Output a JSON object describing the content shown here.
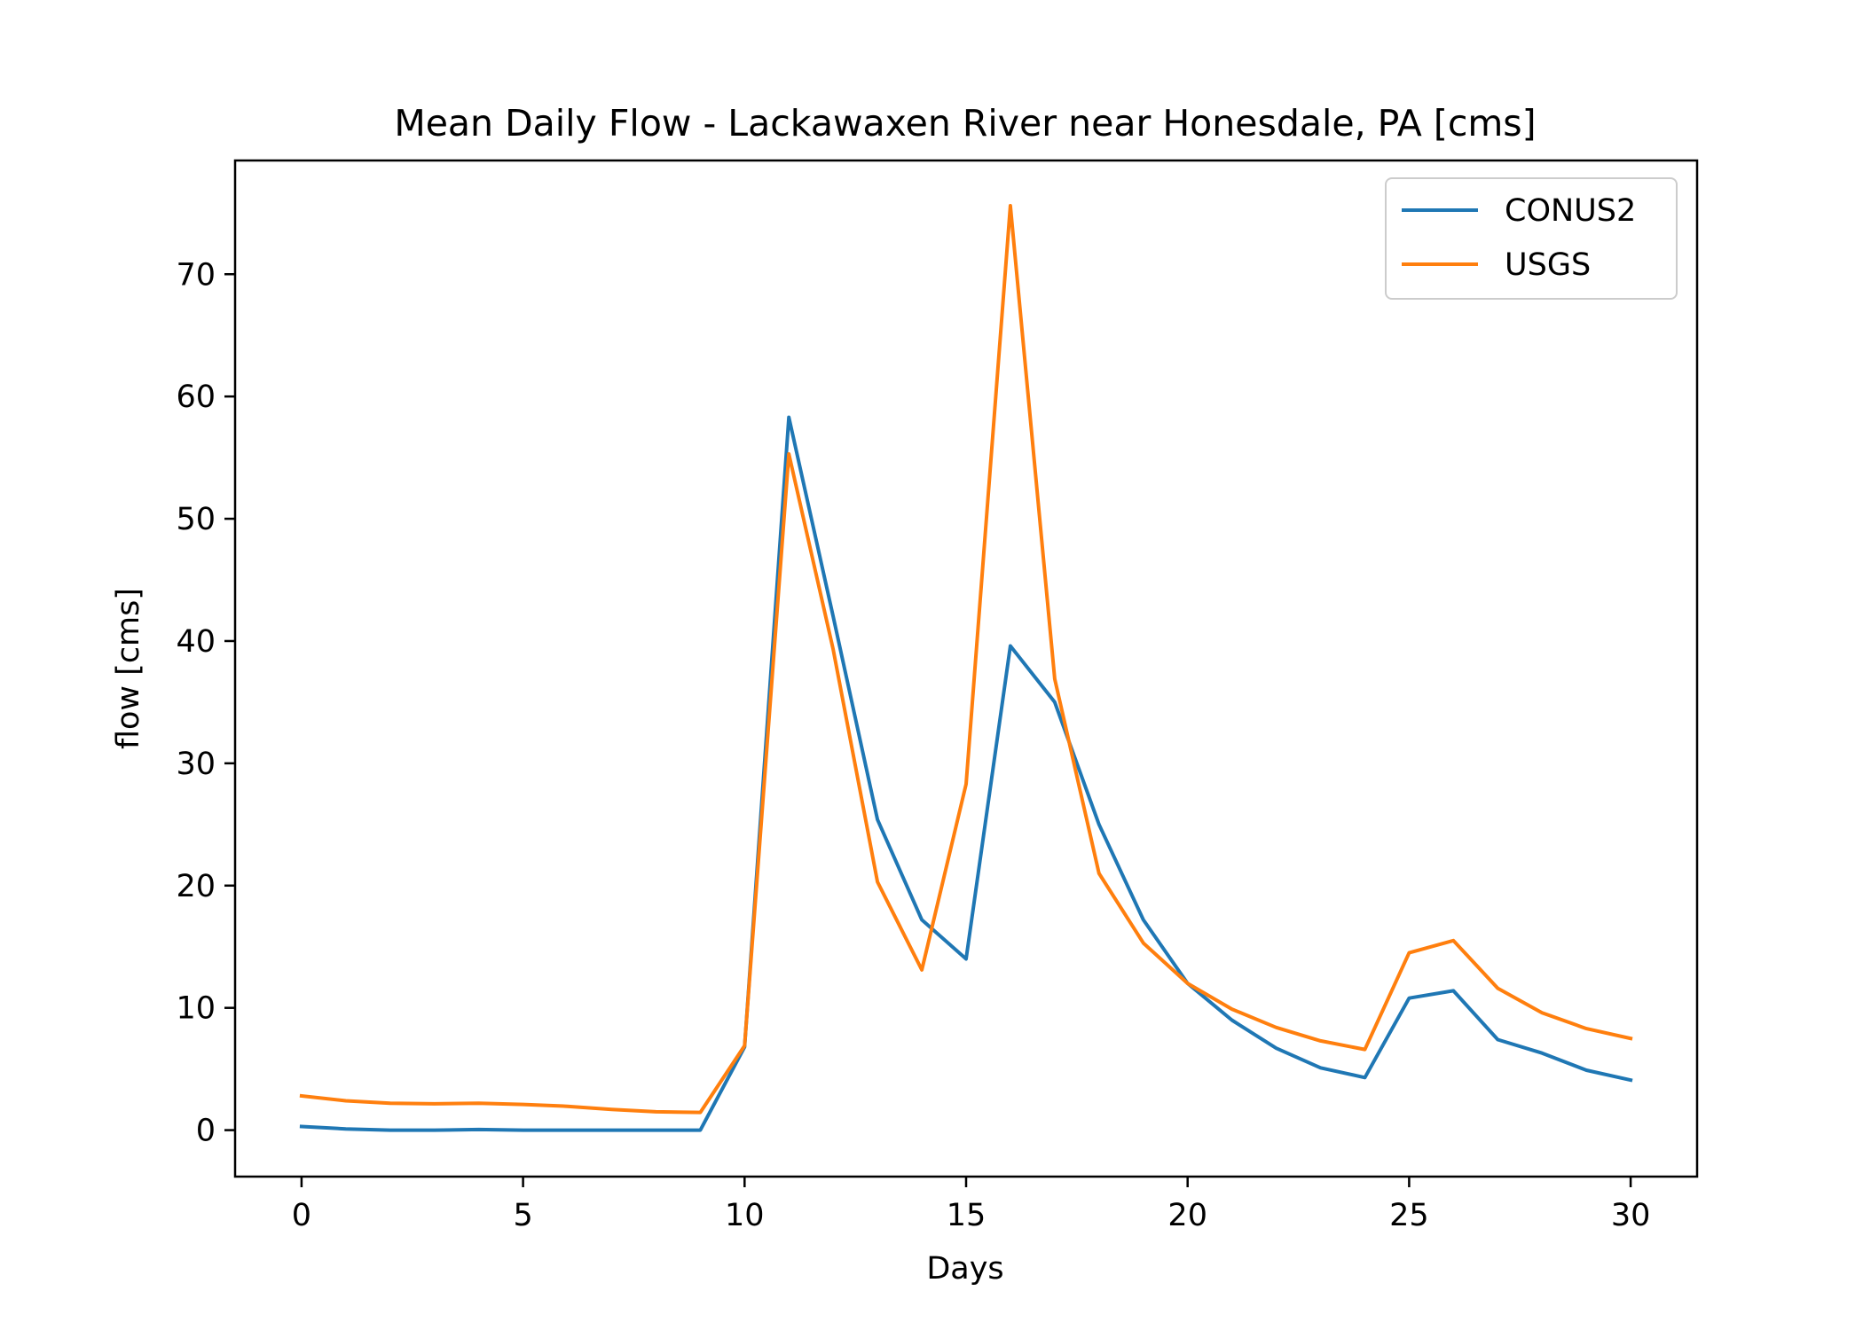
{
  "chart_data": {
    "type": "line",
    "title": "Mean Daily Flow - Lackawaxen River near Honesdale, PA [cms]",
    "xlabel": "Days",
    "ylabel": "flow [cms]",
    "xlim": [
      -1.5,
      31.5
    ],
    "ylim": [
      -3.8,
      79.3
    ],
    "xticks": [
      0,
      5,
      10,
      15,
      20,
      25,
      30
    ],
    "yticks": [
      0,
      10,
      20,
      30,
      40,
      50,
      60,
      70
    ],
    "grid": false,
    "legend_position": "upper right",
    "x": [
      0,
      1,
      2,
      3,
      4,
      5,
      6,
      7,
      8,
      9,
      10,
      11,
      12,
      13,
      14,
      15,
      16,
      17,
      18,
      19,
      20,
      21,
      22,
      23,
      24,
      25,
      26,
      27,
      28,
      29,
      30
    ],
    "series": [
      {
        "name": "CONUS2",
        "color": "#1f77b4",
        "values": [
          0.3,
          0.1,
          0.0,
          0.0,
          0.05,
          0.0,
          0.0,
          0.0,
          0.0,
          0.0,
          6.8,
          58.3,
          42.0,
          25.4,
          17.2,
          14.0,
          39.6,
          35.0,
          25.0,
          17.2,
          12.0,
          9.0,
          6.7,
          5.1,
          4.3,
          10.8,
          11.4,
          7.4,
          6.3,
          4.9,
          4.1
        ]
      },
      {
        "name": "USGS",
        "color": "#ff7f0e",
        "values": [
          2.8,
          2.4,
          2.2,
          2.15,
          2.2,
          2.1,
          1.95,
          1.7,
          1.5,
          1.45,
          6.9,
          55.3,
          39.3,
          20.3,
          13.1,
          28.3,
          75.6,
          36.9,
          21.0,
          15.3,
          12.0,
          9.9,
          8.4,
          7.3,
          6.6,
          14.5,
          15.5,
          11.6,
          9.6,
          8.3,
          7.5
        ]
      }
    ]
  }
}
